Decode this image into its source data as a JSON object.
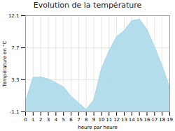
{
  "chart_data": {
    "type": "area",
    "title": "Evolution de la température",
    "xlabel": "heure par heure",
    "ylabel": "Température en °C",
    "x": [
      0,
      1,
      2,
      3,
      4,
      5,
      6,
      7,
      8,
      9,
      10,
      11,
      12,
      13,
      14,
      15,
      16,
      17,
      18,
      19
    ],
    "values": [
      0.3,
      3.6,
      3.7,
      3.4,
      2.9,
      2.3,
      1.0,
      0.1,
      -0.8,
      0.5,
      4.8,
      7.2,
      9.2,
      10.0,
      11.4,
      11.6,
      10.2,
      7.8,
      5.2,
      2.2
    ],
    "xlim": [
      0,
      19
    ],
    "ylim": [
      -1.1,
      12.1
    ],
    "xticks": [
      0,
      1,
      2,
      3,
      4,
      5,
      6,
      7,
      8,
      9,
      10,
      11,
      12,
      13,
      14,
      15,
      16,
      17,
      18,
      19
    ],
    "yticks": [
      -1.1,
      3.3,
      7.7,
      12.1
    ],
    "color": "#a8d8ea",
    "grid": true
  }
}
